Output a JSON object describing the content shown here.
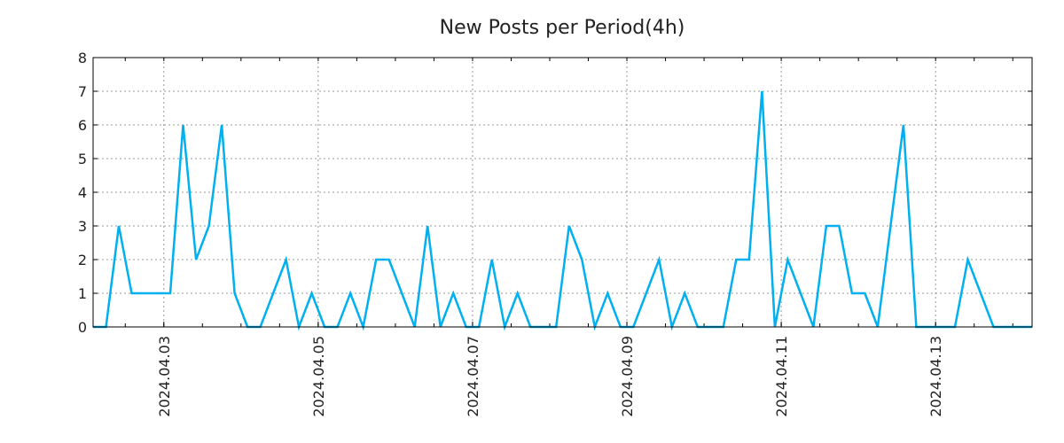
{
  "chart_data": {
    "type": "line",
    "title": "New Posts per Period(4h)",
    "xlabel": "",
    "ylabel": "",
    "x_unit": "hours from first point",
    "x": [
      0,
      4,
      8,
      12,
      16,
      20,
      24,
      28,
      32,
      36,
      40,
      44,
      48,
      52,
      56,
      60,
      64,
      68,
      72,
      76,
      80,
      84,
      88,
      92,
      96,
      100,
      104,
      108,
      112,
      116,
      120,
      124,
      128,
      132,
      136,
      140,
      144,
      148,
      152,
      156,
      160,
      164,
      168,
      172,
      176,
      180,
      184,
      188,
      192,
      196,
      200,
      204,
      208,
      212,
      216,
      220,
      224,
      228,
      232,
      236,
      240,
      244,
      248,
      252,
      256,
      260,
      264,
      268,
      272,
      276,
      280,
      284,
      288,
      292
    ],
    "series": [
      {
        "name": "New Posts",
        "color": "#00b0f0",
        "values": [
          0,
          0,
          3,
          1,
          1,
          1,
          1,
          6,
          2,
          3,
          6,
          1,
          0,
          0,
          1,
          2,
          0,
          1,
          0,
          0,
          1,
          0,
          2,
          2,
          1,
          0,
          3,
          0,
          1,
          0,
          0,
          2,
          0,
          1,
          0,
          0,
          0,
          3,
          2,
          0,
          1,
          0,
          0,
          1,
          2,
          0,
          1,
          0,
          0,
          0,
          2,
          2,
          7,
          0,
          2,
          1,
          0,
          3,
          3,
          1,
          1,
          0,
          3,
          6,
          0,
          0,
          0,
          0,
          2,
          1,
          0,
          0,
          0,
          0
        ]
      }
    ],
    "xlim": [
      0,
      292
    ],
    "ylim": [
      0,
      8
    ],
    "yticks": [
      "0",
      "1",
      "2",
      "3",
      "4",
      "5",
      "6",
      "7",
      "8"
    ],
    "xticks": [
      {
        "at": 22,
        "label": "2024.04.03"
      },
      {
        "at": 70,
        "label": "2024.04.05"
      },
      {
        "at": 118,
        "label": "2024.04.07"
      },
      {
        "at": 166,
        "label": "2024.04.09"
      },
      {
        "at": 214,
        "label": "2024.04.11"
      },
      {
        "at": 262,
        "label": "2024.04.13"
      }
    ],
    "grid": true,
    "legend": "none"
  }
}
